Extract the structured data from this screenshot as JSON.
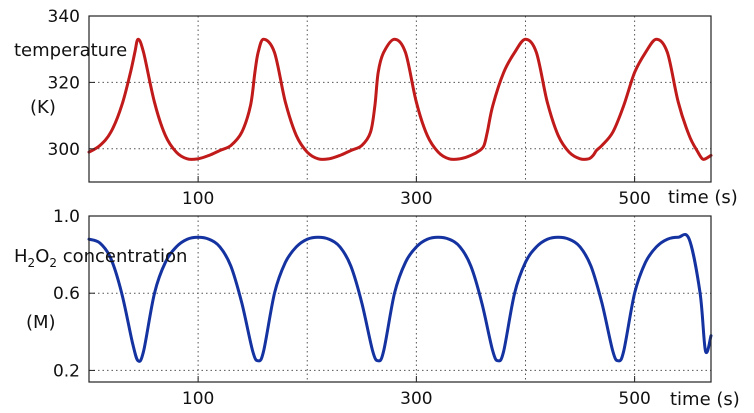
{
  "chart_data": [
    {
      "type": "line",
      "title": "",
      "ylabel": "temperature",
      "yunit": "(K)",
      "xlabel": "time (s)",
      "xlim": [
        0,
        570
      ],
      "ylim": [
        290,
        340
      ],
      "x_ticks": [
        100,
        300,
        500
      ],
      "y_ticks": [
        300,
        320,
        340
      ],
      "grid": true,
      "color": "#c01a1a",
      "series": [
        {
          "x": [
            0,
            10,
            20,
            30,
            38,
            42,
            45,
            50,
            60,
            70,
            80,
            90,
            100,
            110,
            120,
            130,
            140,
            148,
            152,
            155,
            160,
            170,
            180,
            190,
            200,
            210,
            220,
            230,
            240,
            250,
            258,
            262,
            265,
            270,
            280,
            290,
            300,
            310,
            320,
            330,
            340,
            350,
            358,
            362,
            365,
            370,
            380,
            390,
            400,
            410,
            420,
            430,
            440,
            450,
            458,
            462,
            465,
            470,
            480,
            490,
            500,
            510,
            520,
            530,
            540,
            550,
            558,
            562,
            565,
            570
          ],
          "y": [
            299,
            301,
            305,
            313,
            323,
            329,
            333,
            329,
            314,
            304,
            299,
            297,
            297,
            298,
            299.5,
            301,
            305,
            313,
            323,
            329,
            333,
            329,
            314,
            304,
            299,
            297,
            297,
            298,
            299.5,
            301,
            305,
            313,
            323,
            329,
            333,
            329,
            314,
            304,
            299,
            297,
            297,
            298,
            299.5,
            301,
            305,
            313,
            323,
            329,
            333,
            329,
            314,
            304,
            299,
            297,
            297,
            298,
            299.5,
            301,
            305,
            313,
            323,
            329,
            333,
            329,
            314,
            304,
            299,
            297,
            297,
            298
          ]
        }
      ]
    },
    {
      "type": "line",
      "title": "",
      "ylabel_parts": [
        "H",
        "2",
        "O",
        "2",
        " concentration"
      ],
      "yunit": "(M)",
      "xlabel": "time (s)",
      "xlim": [
        0,
        570
      ],
      "ylim": [
        0.14,
        1.0
      ],
      "x_ticks": [
        100,
        300,
        500
      ],
      "y_ticks": [
        0.2,
        0.6,
        1.0
      ],
      "y_tick_labels": [
        "0.2",
        "0.6",
        "1.0"
      ],
      "grid": true,
      "color": "#1432a0",
      "series": [
        {
          "x": [
            0,
            10,
            20,
            30,
            40,
            45,
            50,
            60,
            70,
            80,
            90,
            100,
            110,
            120,
            130,
            140,
            150,
            155,
            160,
            170,
            180,
            190,
            200,
            210,
            220,
            230,
            240,
            250,
            260,
            265,
            270,
            280,
            290,
            300,
            310,
            320,
            330,
            340,
            350,
            360,
            370,
            375,
            380,
            390,
            400,
            410,
            420,
            430,
            440,
            450,
            460,
            470,
            480,
            485,
            490,
            500,
            510,
            520,
            530,
            540,
            550,
            560,
            565,
            570
          ],
          "y": [
            0.88,
            0.86,
            0.78,
            0.6,
            0.34,
            0.25,
            0.3,
            0.6,
            0.76,
            0.84,
            0.88,
            0.89,
            0.88,
            0.84,
            0.74,
            0.55,
            0.3,
            0.25,
            0.3,
            0.6,
            0.76,
            0.84,
            0.88,
            0.89,
            0.88,
            0.84,
            0.74,
            0.55,
            0.3,
            0.25,
            0.3,
            0.6,
            0.76,
            0.84,
            0.88,
            0.89,
            0.88,
            0.84,
            0.74,
            0.55,
            0.3,
            0.25,
            0.3,
            0.6,
            0.76,
            0.84,
            0.88,
            0.89,
            0.88,
            0.84,
            0.74,
            0.55,
            0.3,
            0.25,
            0.3,
            0.6,
            0.76,
            0.84,
            0.88,
            0.89,
            0.88,
            0.6,
            0.3,
            0.38
          ]
        }
      ]
    }
  ]
}
